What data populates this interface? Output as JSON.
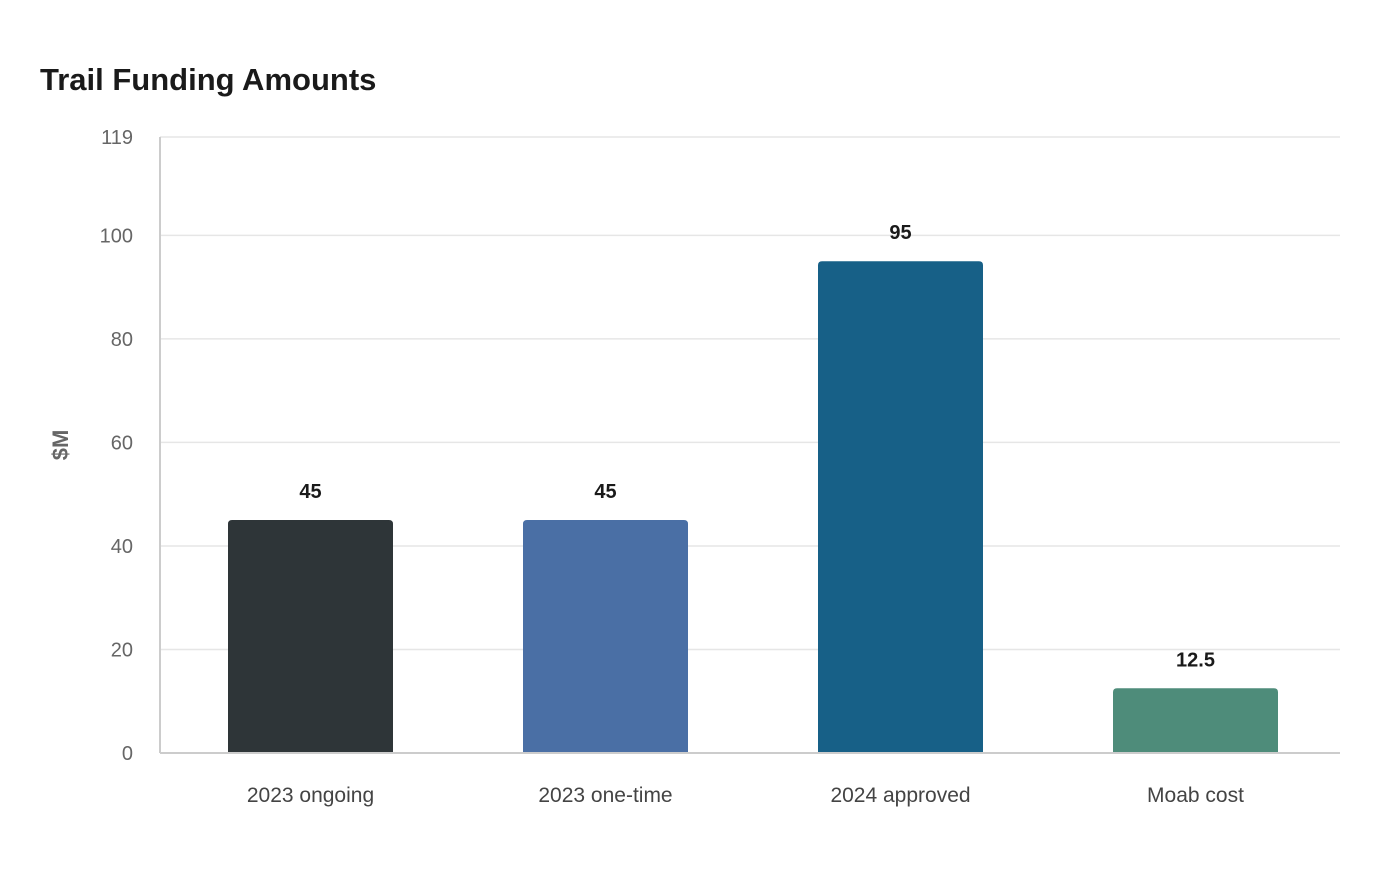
{
  "chart_data": {
    "type": "bar",
    "title": "Trail Funding Amounts",
    "xlabel": "",
    "ylabel": "$M",
    "ylim": [
      0,
      119
    ],
    "yticks": [
      0,
      20,
      40,
      60,
      80,
      100,
      119
    ],
    "grid": true,
    "categories": [
      "2023 ongoing",
      "2023 one-time",
      "2024 approved",
      "Moab cost"
    ],
    "values": [
      45,
      45,
      95,
      12.5
    ],
    "value_labels": [
      "45",
      "45",
      "95",
      "12.5"
    ],
    "colors": [
      "#2e3538",
      "#4a6fa5",
      "#176087",
      "#4e8c7a"
    ]
  }
}
